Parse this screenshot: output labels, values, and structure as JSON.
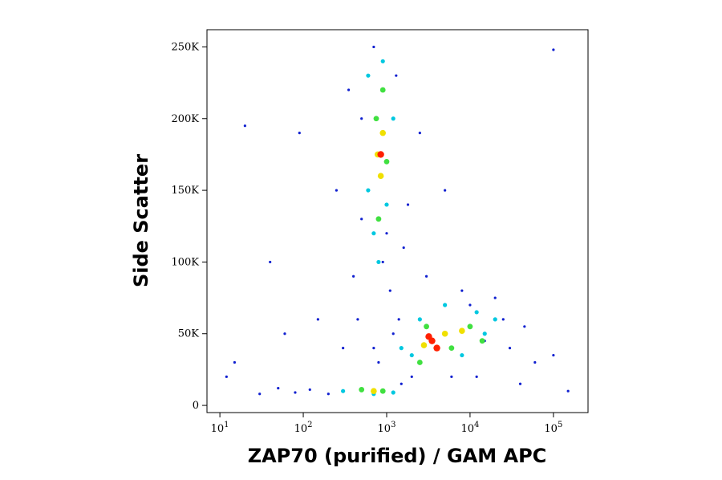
{
  "chart_data": {
    "type": "scatter",
    "x_label": "ZAP70 (purified) / GAM APC",
    "y_label": "Side Scatter",
    "x_scale": "log",
    "xlim": [
      7,
      260000
    ],
    "xticks": [
      {
        "value": 10,
        "label": "10",
        "exponent": "1"
      },
      {
        "value": 100,
        "label": "10",
        "exponent": "2"
      },
      {
        "value": 1000,
        "label": "10",
        "exponent": "3"
      },
      {
        "value": 10000,
        "label": "10",
        "exponent": "4"
      },
      {
        "value": 100000,
        "label": "10",
        "exponent": "5"
      }
    ],
    "ylim": [
      -5000,
      262000
    ],
    "yticks": [
      0,
      {
        "value": 50000,
        "label": "50K"
      },
      {
        "value": 100000,
        "label": "100K"
      },
      {
        "value": 150000,
        "label": "150K"
      },
      {
        "value": 200000,
        "label": "200K"
      },
      {
        "value": 250000,
        "label": "250K"
      }
    ],
    "series": [
      {
        "color": "#1020d0",
        "x": [
          30,
          50,
          80,
          120,
          200,
          150,
          300,
          400,
          250,
          500,
          600,
          700,
          900,
          1100,
          1400,
          1800,
          2500,
          3000,
          5000,
          8000,
          12000,
          20000,
          30000,
          40000,
          60000,
          100000,
          150000,
          20,
          40,
          15,
          12,
          60,
          90,
          350,
          450,
          800,
          1000,
          1300,
          1600,
          2000,
          500,
          700,
          1200,
          1500,
          15000,
          25000,
          45000,
          10000,
          6000,
          100000
        ],
        "values": [
          8000,
          12000,
          9000,
          11000,
          8000,
          60000,
          40000,
          90000,
          150000,
          130000,
          230000,
          250000,
          100000,
          80000,
          60000,
          140000,
          190000,
          90000,
          150000,
          80000,
          20000,
          75000,
          40000,
          15000,
          30000,
          35000,
          10000,
          195000,
          100000,
          30000,
          20000,
          50000,
          190000,
          220000,
          60000,
          30000,
          120000,
          230000,
          110000,
          20000,
          200000,
          40000,
          50000,
          15000,
          45000,
          60000,
          55000,
          70000,
          20000,
          248000
        ]
      },
      {
        "color": "#00c8e0",
        "x": [
          600,
          700,
          1000,
          1200,
          600,
          900,
          800,
          1500,
          2000,
          8000,
          15000,
          20000,
          300,
          1200,
          2500,
          5000,
          12000,
          700
        ],
        "values": [
          150000,
          120000,
          140000,
          200000,
          230000,
          240000,
          100000,
          40000,
          35000,
          35000,
          50000,
          60000,
          10000,
          9000,
          60000,
          70000,
          65000,
          8000
        ]
      },
      {
        "color": "#40e040",
        "x": [
          800,
          750,
          1000,
          900,
          2500,
          3000,
          6000,
          10000,
          14000,
          500,
          900
        ],
        "values": [
          130000,
          200000,
          170000,
          220000,
          30000,
          55000,
          40000,
          55000,
          45000,
          11000,
          10000
        ]
      },
      {
        "color": "#f0e000",
        "x": [
          850,
          900,
          780,
          2800,
          5000,
          8000,
          700
        ],
        "values": [
          160000,
          190000,
          175000,
          42000,
          50000,
          52000,
          10000
        ]
      },
      {
        "color": "#ff2000",
        "x": [
          850,
          3500,
          4000,
          3200
        ],
        "values": [
          175000,
          45000,
          40000,
          48000
        ]
      }
    ]
  }
}
